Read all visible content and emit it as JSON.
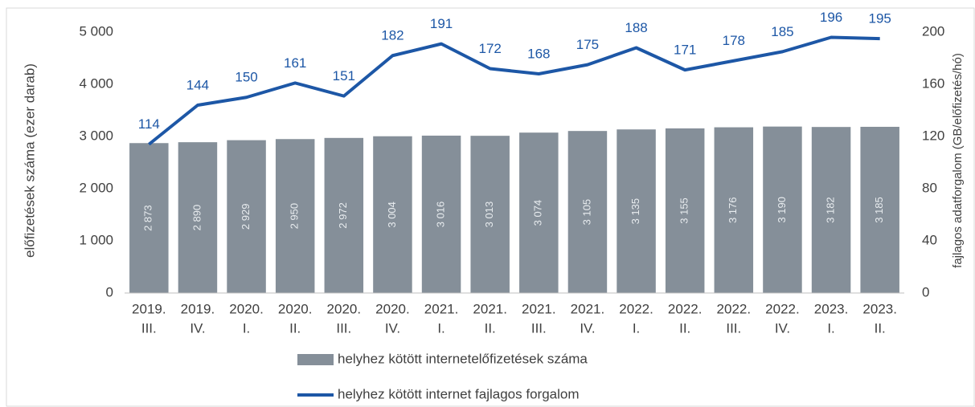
{
  "chart_data": {
    "type": "combo",
    "categories": [
      [
        "2019.",
        "III."
      ],
      [
        "2019.",
        "IV."
      ],
      [
        "2020.",
        "I."
      ],
      [
        "2020.",
        "II."
      ],
      [
        "2020.",
        "III."
      ],
      [
        "2020.",
        "IV."
      ],
      [
        "2021.",
        "I."
      ],
      [
        "2021.",
        "II."
      ],
      [
        "2021.",
        "III."
      ],
      [
        "2021.",
        "IV."
      ],
      [
        "2022.",
        "I."
      ],
      [
        "2022.",
        "II."
      ],
      [
        "2022.",
        "III."
      ],
      [
        "2022.",
        "IV."
      ],
      [
        "2023.",
        "I."
      ],
      [
        "2023.",
        "II."
      ]
    ],
    "y_label": "előfizetések száma (ezer darab)",
    "y2_label": "fajlagos adatforgalom  (GB/előfizetés/hó)",
    "ylim": [
      0,
      5000
    ],
    "yticks": [
      0,
      {
        "value": 1000,
        "label": "1 000"
      },
      {
        "value": 2000,
        "label": "2 000"
      },
      {
        "value": 3000,
        "label": "3 000"
      },
      {
        "value": 4000,
        "label": "4 000"
      },
      {
        "value": 5000,
        "label": "5 000"
      }
    ],
    "y2lim": [
      0,
      200
    ],
    "y2ticks": [
      0,
      40,
      80,
      120,
      160,
      200
    ],
    "series": [
      {
        "name": "helyhez kötött internetelőfizetések száma",
        "type": "bar",
        "color": "#858f99",
        "values": [
          2873,
          2890,
          2929,
          2950,
          2972,
          3004,
          3016,
          3013,
          3074,
          3105,
          3135,
          3155,
          3176,
          3190,
          3182,
          3185
        ],
        "value_labels": [
          "2 873",
          "2 890",
          "2 929",
          "2 950",
          "2 972",
          "3 004",
          "3 016",
          "3 013",
          "3 074",
          "3 105",
          "3 135",
          "3 155",
          "3 176",
          "3 190",
          "3 182",
          "3 185"
        ]
      },
      {
        "name": "helyhez kötött internet fajlagos forgalom",
        "type": "line",
        "color": "#1d57a6",
        "axis": "y2",
        "values": [
          114,
          144,
          150,
          161,
          151,
          182,
          191,
          172,
          168,
          175,
          188,
          171,
          178,
          185,
          196,
          195
        ]
      }
    ]
  }
}
